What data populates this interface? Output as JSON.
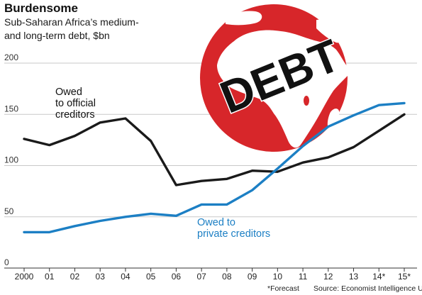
{
  "header": {
    "title": "Burdensome",
    "subtitle_line1": "Sub-Saharan Africa’s medium-",
    "subtitle_line2": "and long-term debt, $bn"
  },
  "footer": {
    "forecast_note": "*Forecast",
    "source": "Source: Economist Intelligence Unit"
  },
  "illustration": {
    "label": "DEBT",
    "globe_color": "#d7262a",
    "land_color": "#ffffff"
  },
  "chart_data": {
    "type": "line",
    "title": "Burdensome",
    "subtitle": "Sub-Saharan Africa’s medium- and long-term debt, $bn",
    "xlabel": "",
    "ylabel": "",
    "categories": [
      "2000",
      "01",
      "02",
      "03",
      "04",
      "05",
      "06",
      "07",
      "08",
      "09",
      "10",
      "11",
      "12",
      "13",
      "14*",
      "15*"
    ],
    "ylim": [
      0,
      200
    ],
    "yticks": [
      "200",
      "150",
      "100",
      "50",
      "0"
    ],
    "grid": true,
    "series": [
      {
        "name": "Owed to official creditors",
        "label_lines": [
          "Owed",
          "to official",
          "creditors"
        ],
        "color": "#1a1a1a",
        "values": [
          126,
          120,
          129,
          142,
          146,
          124,
          81,
          85,
          87,
          95,
          94,
          103,
          108,
          118,
          134,
          150
        ]
      },
      {
        "name": "Owed to private creditors",
        "label_lines": [
          "Owed to",
          "private creditors"
        ],
        "color": "#1c7fc4",
        "values": [
          35,
          35,
          41,
          46,
          50,
          53,
          51,
          62,
          62,
          76,
          97,
          119,
          138,
          149,
          159,
          161
        ]
      }
    ]
  }
}
